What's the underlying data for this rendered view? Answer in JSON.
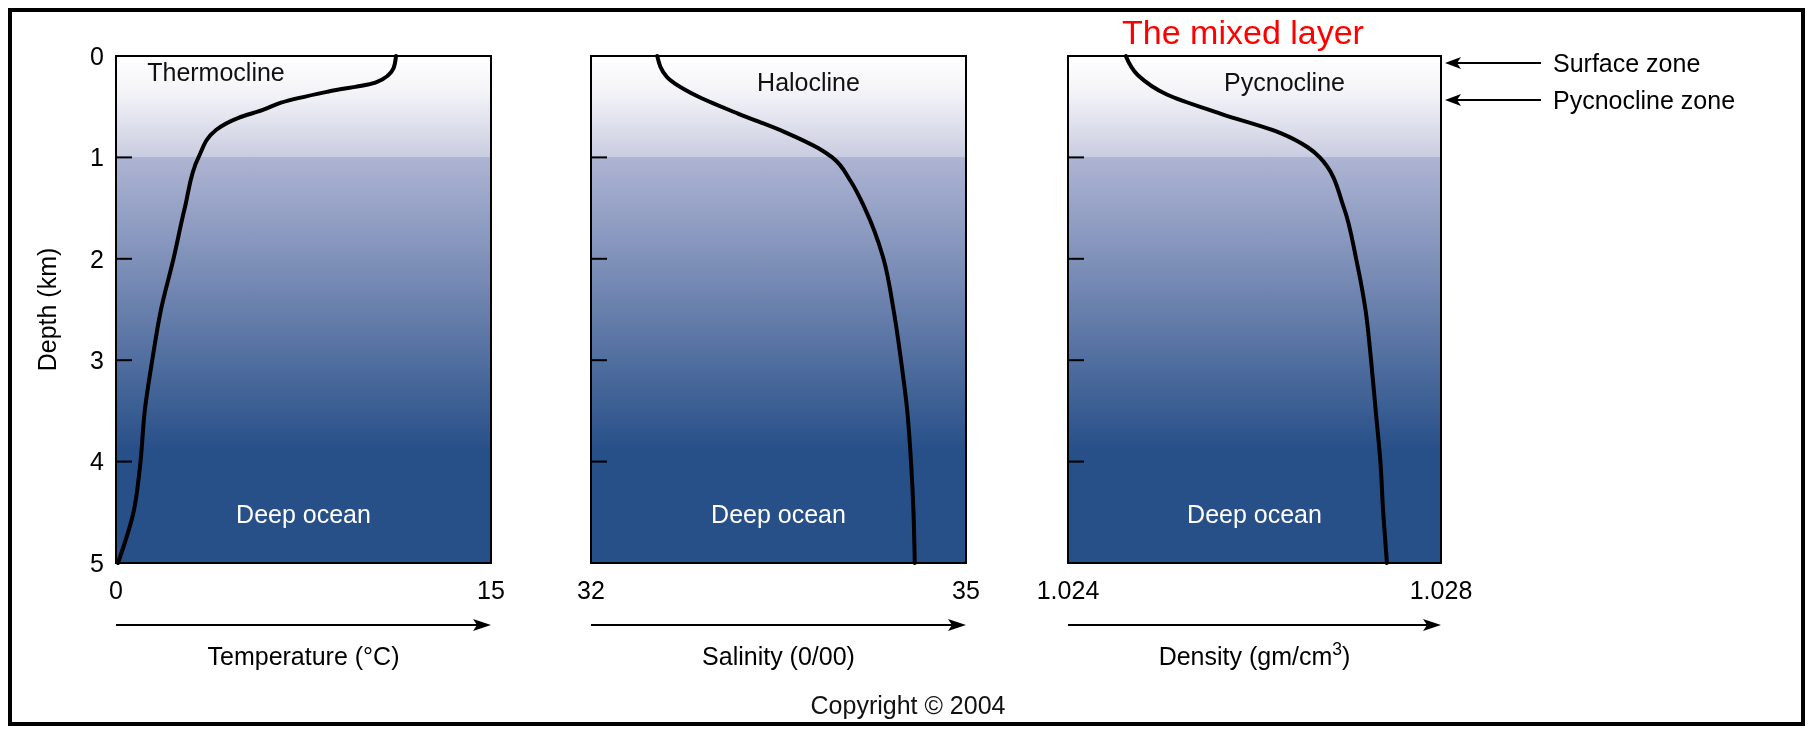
{
  "chart_data": [
    {
      "type": "line",
      "xlabel": "Temperature (°C)",
      "ylabel": "Depth (km)",
      "xlim": [
        0,
        15
      ],
      "xticks": [
        0,
        15
      ],
      "ylim": [
        5,
        0
      ],
      "yticks": [
        0,
        1,
        2,
        3,
        4,
        5
      ],
      "annotations": [
        "Thermocline",
        "Deep ocean"
      ],
      "series": [
        {
          "color": "#000000",
          "x": [
            11.2,
            11.1,
            10.4,
            8.5,
            6.6,
            5.9,
            4.9,
            4.0,
            3.3,
            2.75,
            2.3,
            1.8,
            1.45,
            1.15,
            0.98,
            0.7,
            0.08
          ],
          "values": [
            0,
            0.12,
            0.26,
            0.35,
            0.46,
            0.53,
            0.61,
            0.73,
            1.0,
            1.5,
            2.0,
            2.5,
            3.0,
            3.5,
            4.0,
            4.5,
            5.0
          ]
        }
      ]
    },
    {
      "type": "line",
      "xlabel": "Salinity (0/00)",
      "xlim": [
        32,
        35
      ],
      "xticks": [
        32,
        35
      ],
      "ylim": [
        5,
        0
      ],
      "yticks": [
        0,
        1,
        2,
        3,
        4,
        5
      ],
      "tick_labels": "x",
      "annotations": [
        "Halocline",
        "Deep ocean"
      ],
      "series": [
        {
          "color": "#000000",
          "x": [
            32.53,
            32.61,
            32.84,
            33.18,
            33.55,
            33.82,
            33.93,
            34.08,
            34.19,
            34.34,
            34.42,
            34.48,
            34.53,
            34.56,
            34.58,
            34.59
          ],
          "values": [
            0,
            0.21,
            0.39,
            0.57,
            0.75,
            0.91,
            1.0,
            1.24,
            1.5,
            2.0,
            2.5,
            3.0,
            3.5,
            4.0,
            4.5,
            5.0
          ]
        }
      ]
    },
    {
      "type": "line",
      "xlabel": "Density (gm/cm$^{3}$)",
      "xlim": [
        1.024,
        1.028
      ],
      "xticks": [
        1.024,
        1.028
      ],
      "ylim": [
        5,
        0
      ],
      "yticks": [
        0,
        1,
        2,
        3,
        4,
        5
      ],
      "tick_labels": "x",
      "annotations": [
        "Pycnocline",
        "Deep ocean",
        "The mixed layer",
        "Surface zone",
        "Pycnocline zone",
        "Copyright © 2004"
      ],
      "series": [
        {
          "color": "#000000",
          "x": [
            1.02462,
            1.02475,
            1.02506,
            1.02564,
            1.02628,
            1.02657,
            1.0267,
            1.02696,
            1.02709,
            1.02719,
            1.02725,
            1.0273,
            1.02735,
            1.02738,
            1.02742
          ],
          "values": [
            0,
            0.19,
            0.38,
            0.57,
            0.76,
            0.9,
            1.0,
            1.5,
            2.0,
            2.5,
            3.0,
            3.5,
            4.0,
            4.5,
            5.0
          ]
        }
      ]
    }
  ]
}
